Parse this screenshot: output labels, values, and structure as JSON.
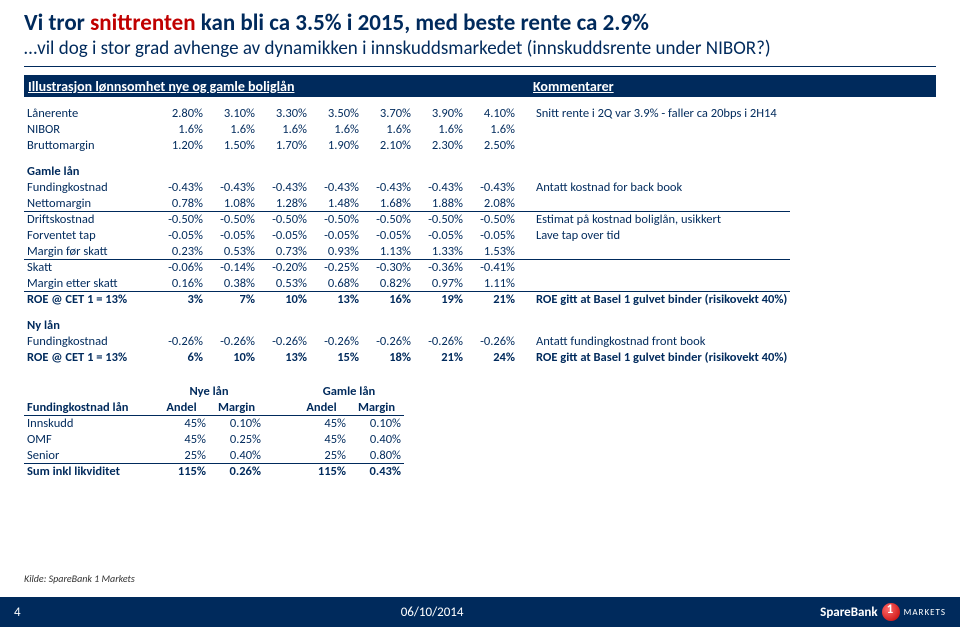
{
  "title_prefix": "Vi tror ",
  "title_hl": "snittrenten",
  "title_suffix": " kan bli ca 3.5% i 2015, med beste rente ca 2.9%",
  "subtitle": "…vil dog i stor grad avhenge av dynamikken i innskuddsmarkedet (innskuddsrente under NIBOR?)",
  "banner_left": "Illustrasjon lønnsomhet nye og gamle boliglån",
  "banner_right": "Kommentarer",
  "section1": {
    "rows": [
      {
        "label": "Lånerente",
        "vals": [
          "2.80%",
          "3.10%",
          "3.30%",
          "3.50%",
          "3.70%",
          "3.90%",
          "4.10%"
        ],
        "comment": "Snitt rente i 2Q var 3.9% - faller ca 20bps i 2H14"
      },
      {
        "label": "NIBOR",
        "vals": [
          "1.6%",
          "1.6%",
          "1.6%",
          "1.6%",
          "1.6%",
          "1.6%",
          "1.6%"
        ],
        "comment": ""
      },
      {
        "label": "Bruttomargin",
        "vals": [
          "1.20%",
          "1.50%",
          "1.70%",
          "1.90%",
          "2.10%",
          "2.30%",
          "2.50%"
        ],
        "comment": ""
      }
    ]
  },
  "section2": {
    "header": "Gamle lån",
    "rows": [
      {
        "label": "Fundingkostnad",
        "vals": [
          "-0.43%",
          "-0.43%",
          "-0.43%",
          "-0.43%",
          "-0.43%",
          "-0.43%",
          "-0.43%"
        ],
        "comment": "Antatt kostnad for back book",
        "u": false
      },
      {
        "label": "Nettomargin",
        "vals": [
          "0.78%",
          "1.08%",
          "1.28%",
          "1.48%",
          "1.68%",
          "1.88%",
          "2.08%"
        ],
        "comment": "",
        "u": true
      },
      {
        "label": "Driftskostnad",
        "vals": [
          "-0.50%",
          "-0.50%",
          "-0.50%",
          "-0.50%",
          "-0.50%",
          "-0.50%",
          "-0.50%"
        ],
        "comment": "Estimat på kostnad boliglån, usikkert",
        "u": false
      },
      {
        "label": "Forventet tap",
        "vals": [
          "-0.05%",
          "-0.05%",
          "-0.05%",
          "-0.05%",
          "-0.05%",
          "-0.05%",
          "-0.05%"
        ],
        "comment": "Lave tap over tid",
        "u": false
      },
      {
        "label": "Margin før skatt",
        "vals": [
          "0.23%",
          "0.53%",
          "0.73%",
          "0.93%",
          "1.13%",
          "1.33%",
          "1.53%"
        ],
        "comment": "",
        "u": true
      },
      {
        "label": "Skatt",
        "vals": [
          "-0.06%",
          "-0.14%",
          "-0.20%",
          "-0.25%",
          "-0.30%",
          "-0.36%",
          "-0.41%"
        ],
        "comment": "",
        "u": false
      },
      {
        "label": "Margin etter skatt",
        "vals": [
          "0.16%",
          "0.38%",
          "0.53%",
          "0.68%",
          "0.82%",
          "0.97%",
          "1.11%"
        ],
        "comment": "",
        "u": true
      },
      {
        "label": "ROE @ CET 1 = 13%",
        "vals": [
          "3%",
          "7%",
          "10%",
          "13%",
          "16%",
          "19%",
          "21%"
        ],
        "comment": "ROE gitt at Basel 1 gulvet binder (risikovekt 40%)",
        "bold": true,
        "u": false
      }
    ]
  },
  "section3": {
    "header": "Ny lån",
    "rows": [
      {
        "label": "Fundingkostnad",
        "vals": [
          "-0.26%",
          "-0.26%",
          "-0.26%",
          "-0.26%",
          "-0.26%",
          "-0.26%",
          "-0.26%"
        ],
        "comment": "Antatt fundingkostnad front book",
        "u": false
      },
      {
        "label": "ROE @ CET 1 = 13%",
        "vals": [
          "6%",
          "10%",
          "13%",
          "15%",
          "18%",
          "21%",
          "24%"
        ],
        "comment": "ROE gitt at Basel 1 gulvet binder (risikovekt 40%)",
        "bold": true,
        "u": false
      }
    ]
  },
  "section4": {
    "h1": "Nye lån",
    "h2": "Gamle lån",
    "sub1": "Andel",
    "sub2": "Margin",
    "title_row": "Fundingkostnad lån",
    "rows": [
      {
        "label": "Innskudd",
        "a1": "45%",
        "m1": "0.10%",
        "a2": "45%",
        "m2": "0.10%"
      },
      {
        "label": "OMF",
        "a1": "45%",
        "m1": "0.25%",
        "a2": "45%",
        "m2": "0.40%"
      },
      {
        "label": "Senior",
        "a1": "25%",
        "m1": "0.40%",
        "a2": "25%",
        "m2": "0.80%"
      },
      {
        "label": "Sum inkl likviditet",
        "a1": "115%",
        "m1": "0.26%",
        "a2": "115%",
        "m2": "0.43%",
        "bold": true
      }
    ]
  },
  "source": "Kilde: SpareBank 1 Markets",
  "footer": {
    "page": "4",
    "date": "06/10/2014",
    "brand": "SpareBank",
    "markets": "MARKETS"
  }
}
